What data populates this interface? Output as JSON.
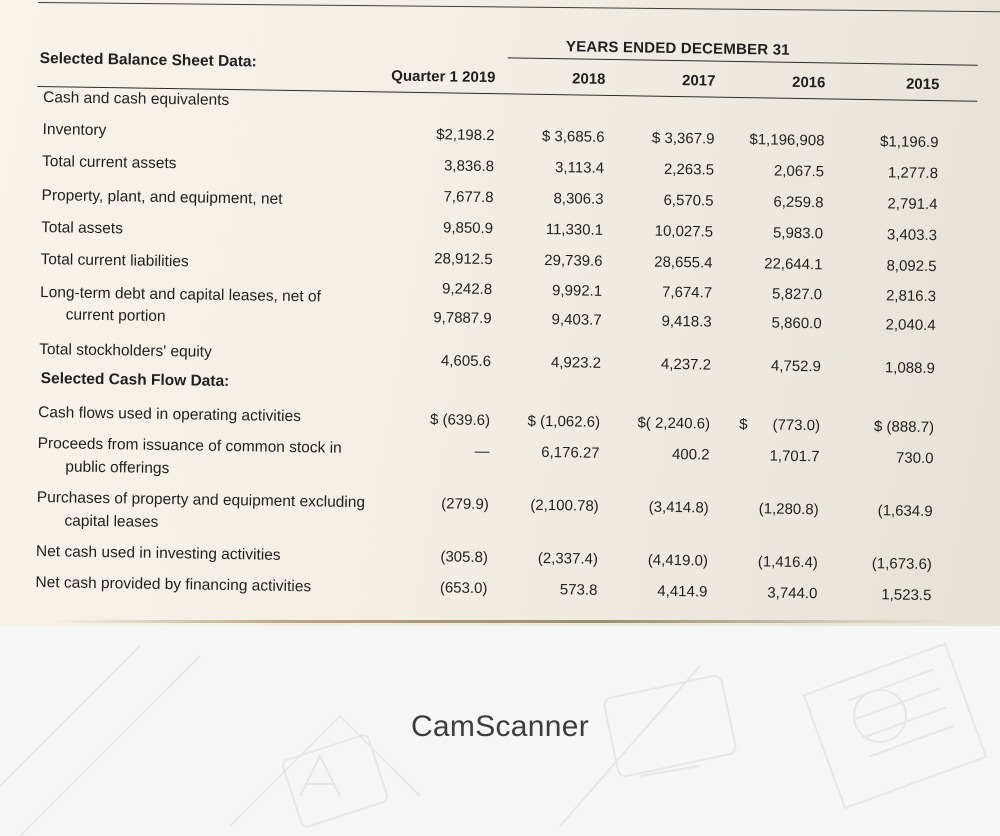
{
  "table": {
    "years_title": "YEARS ENDED DECEMBER 31",
    "columns": [
      "Quarter 1 2019",
      "2018",
      "2017",
      "2016",
      "2015"
    ],
    "balance_section": "Selected Balance Sheet Data:",
    "cashflow_section": "Selected Cash Flow Data:",
    "balance_rows": [
      {
        "label": "Cash and cash equivalents",
        "values": [
          "",
          "",
          "",
          "",
          ""
        ]
      },
      {
        "label": "Inventory",
        "values": [
          "$2,198.2",
          "$ 3,685.6",
          "$ 3,367.9",
          "$1,196,908",
          "$1,196.9"
        ]
      },
      {
        "label": "Total current assets",
        "values": [
          "3,836.8",
          "3,113.4",
          "2,263.5",
          "2,067.5",
          "1,277.8"
        ]
      },
      {
        "label": "Property, plant, and equipment, net",
        "values": [
          "7,677.8",
          "8,306.3",
          "6,570.5",
          "6,259.8",
          "2,791.4"
        ]
      },
      {
        "label": "Total assets",
        "values": [
          "9,850.9",
          "11,330.1",
          "10,027.5",
          "5,983.0",
          "3,403.3"
        ]
      },
      {
        "label": "Total current liabilities",
        "values": [
          "28,912.5",
          "29,739.6",
          "28,655.4",
          "22,644.1",
          "8,092.5"
        ]
      },
      {
        "label": "Long-term debt and capital leases, net of",
        "label2": "current portion",
        "values": [
          "9,242.8",
          "9,992.1",
          "7,674.7",
          "5,827.0",
          "2,816.3"
        ]
      },
      {
        "label": "",
        "values": [
          "9,7887.9",
          "9,403.7",
          "9,418.3",
          "5,860.0",
          "2,040.4"
        ]
      },
      {
        "label": "Total stockholders' equity",
        "values": [
          "4,605.6",
          "4,923.2",
          "4,237.2",
          "4,752.9",
          "1,088.9"
        ]
      }
    ],
    "cashflow_rows": [
      {
        "label": "Cash flows used in operating activities",
        "values": [
          "$ (639.6)",
          "$ (1,062.6)",
          "$( 2,240.6)",
          "$      (773.0)",
          "$ (888.7)"
        ]
      },
      {
        "label": "Proceeds from issuance of common stock in",
        "label2": "public offerings",
        "values": [
          "—",
          "6,176.27",
          "400.2",
          "1,701.7",
          "730.0"
        ]
      },
      {
        "label": "Purchases of property and equipment excluding",
        "label2": "capital leases",
        "values": [
          "(279.9)",
          "(2,100.78)",
          "(3,414.8)",
          "(1,280.8)",
          "(1,634.9"
        ]
      },
      {
        "label": "Net cash used in investing activities",
        "values": [
          "(305.8)",
          "(2,337.4)",
          "(4,419.0)",
          "(1,416.4)",
          "(1,673.6)"
        ]
      },
      {
        "label": "Net cash provided by financing activities",
        "values": [
          "(653.0)",
          "573.8",
          "4,414.9",
          "3,744.0",
          "1,523.5"
        ]
      }
    ]
  },
  "footer": {
    "brand": "CamScanner"
  }
}
